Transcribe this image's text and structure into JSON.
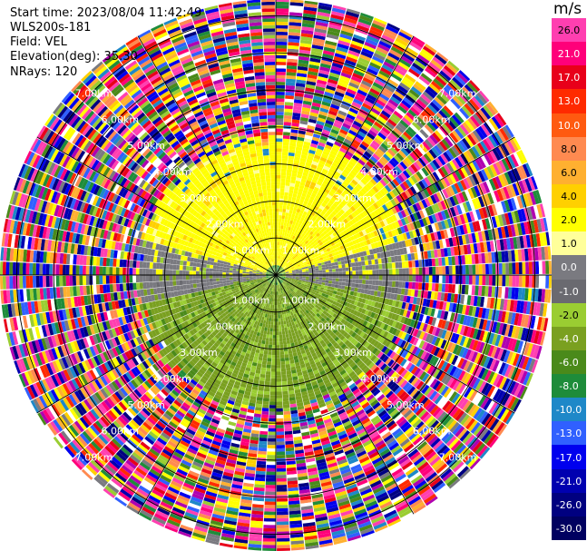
{
  "header": {
    "start_time": "Start time: 2023/08/04 11:42:49",
    "instrument": "WLS200s-181",
    "field": "Field: VEL",
    "elevation": "Elevation(deg): 35.30",
    "nrays": "NRays: 120"
  },
  "colorbar": {
    "unit": "m/s",
    "labels": [
      "26.0",
      "21.0",
      "17.0",
      "13.0",
      "10.0",
      "8.0",
      "6.0",
      "4.0",
      "2.0",
      "1.0",
      "0.0",
      "-1.0",
      "-2.0",
      "-4.0",
      "-6.0",
      "-8.0",
      "-10.0",
      "-13.0",
      "-17.0",
      "-21.0",
      "-26.0",
      "-30.0"
    ],
    "colors": [
      "#ff3fb0",
      "#ff007a",
      "#e8001a",
      "#ff2a00",
      "#ff5a10",
      "#ff8a50",
      "#ffb030",
      "#ffd000",
      "#ffff00",
      "#ffff9a",
      "#7a7a80",
      "#6a6a70",
      "#9acd32",
      "#7aa020",
      "#4a8a1a",
      "#1e8c3a",
      "#1e88c8",
      "#3060ff",
      "#0000ee",
      "#0000b0",
      "#000080",
      "#000060"
    ]
  },
  "chart_data": {
    "type": "ppi",
    "field": "VEL",
    "units": "m/s",
    "elevation_deg": 35.3,
    "n_rays": 120,
    "range_rings_km": [
      1.0,
      2.0,
      3.0,
      4.0,
      5.0,
      6.0,
      7.0
    ],
    "ring_labels": [
      "1.00km",
      "2.00km",
      "3.00km",
      "4.00km",
      "5.00km",
      "6.00km",
      "7.00km"
    ],
    "velocity_regions": [
      {
        "range_km": [
          0.0,
          3.6
        ],
        "azimuth_deg": [
          0,
          360
        ],
        "description": "coherent signal",
        "north_sector_vel": 2.0,
        "east_west_vel": 0.0,
        "south_sector_vel": -2.5
      },
      {
        "range_km": [
          3.6,
          7.4
        ],
        "azimuth_deg": [
          0,
          360
        ],
        "description": "noise",
        "vel": "mixed"
      }
    ]
  }
}
